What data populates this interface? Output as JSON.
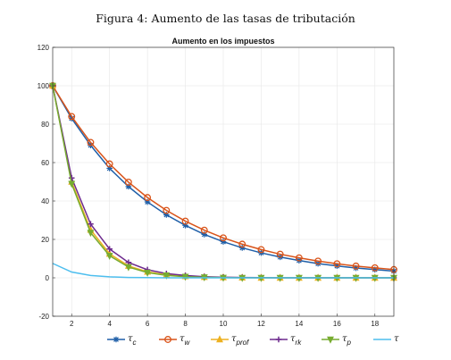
{
  "caption": "Figura 4: Aumento de las tasas de tributación",
  "chart_data": {
    "type": "line",
    "title": "Aumento en los impuestos",
    "xlim": [
      1,
      19
    ],
    "ylim": [
      -20,
      120
    ],
    "xticks": [
      2,
      4,
      6,
      8,
      10,
      12,
      14,
      16,
      18
    ],
    "yticks": [
      -20,
      0,
      20,
      40,
      60,
      80,
      100,
      120
    ],
    "grid": true,
    "legend_position": "bottom",
    "x": [
      1,
      2,
      3,
      4,
      5,
      6,
      7,
      8,
      9,
      10,
      11,
      12,
      13,
      14,
      15,
      16,
      17,
      18,
      19
    ],
    "series": [
      {
        "name": "τc",
        "symbol": "τ",
        "sub": "c",
        "color": "#1f5fa8",
        "marker": "star",
        "values": [
          100,
          83,
          69,
          57,
          47.5,
          39.5,
          32.8,
          27.3,
          22.6,
          18.8,
          15.6,
          13,
          10.8,
          9,
          7.4,
          6.2,
          5.1,
          4.3,
          3.5
        ]
      },
      {
        "name": "τw",
        "symbol": "τ",
        "sub": "w",
        "color": "#d9541a",
        "marker": "circle",
        "values": [
          100,
          84,
          70.5,
          59.3,
          49.8,
          41.8,
          35.1,
          29.5,
          24.8,
          20.8,
          17.5,
          14.7,
          12.3,
          10.4,
          8.7,
          7.3,
          6.1,
          5.2,
          4.3
        ]
      },
      {
        "name": "τprof",
        "symbol": "τ",
        "sub": "prof",
        "color": "#edb120",
        "marker": "triangle-up",
        "values": [
          100,
          50,
          25,
          12.5,
          6.2,
          3.1,
          1.6,
          0.8,
          0.4,
          0.2,
          0.1,
          0,
          0,
          0,
          0,
          0,
          0,
          0,
          0
        ]
      },
      {
        "name": "τrk",
        "symbol": "τ",
        "sub": "rk",
        "color": "#6e2b8e",
        "marker": "plus",
        "values": [
          100,
          52,
          28,
          15,
          8,
          4.2,
          2.2,
          1.2,
          0.6,
          0.3,
          0.2,
          0.1,
          0,
          0,
          0,
          0,
          0,
          0,
          0
        ]
      },
      {
        "name": "τp",
        "symbol": "τ",
        "sub": "p",
        "color": "#77ac30",
        "marker": "triangle-down",
        "values": [
          100,
          49,
          23.5,
          11.5,
          5.6,
          2.7,
          1.3,
          0.6,
          0.3,
          0.1,
          0,
          0,
          0,
          0,
          0,
          0,
          0,
          0,
          0
        ]
      },
      {
        "name": "τ",
        "symbol": "τ",
        "sub": "",
        "color": "#4dbeee",
        "marker": "none",
        "values": [
          7.5,
          3,
          1.2,
          0.5,
          0.2,
          0.1,
          0,
          0,
          0,
          0,
          0,
          0,
          0,
          0,
          0,
          0,
          0,
          0,
          0
        ]
      }
    ]
  }
}
